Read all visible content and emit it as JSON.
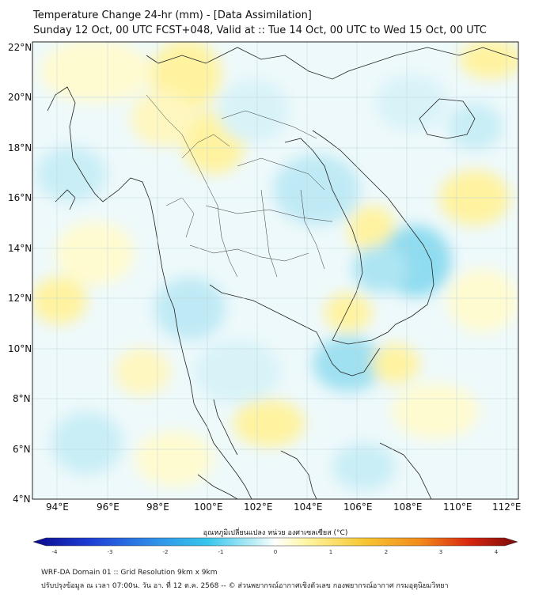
{
  "title": {
    "line1": "Temperature Change 24-hr (mm) - [Data Assimilation]",
    "line2": "Sunday 12 Oct, 00 UTC FCST+048, Valid at :: Tue 14 Oct, 00 UTC to Wed 15 Oct, 00 UTC"
  },
  "map": {
    "lat_labels": [
      "22°N",
      "20°N",
      "18°N",
      "16°N",
      "14°N",
      "12°N",
      "10°N",
      "8°N",
      "6°N",
      "4°N"
    ],
    "lon_labels": [
      "94°E",
      "96°E",
      "98°E",
      "100°E",
      "102°E",
      "104°E",
      "106°E",
      "108°E",
      "110°E",
      "112°E"
    ],
    "lat_range": [
      4,
      22.2
    ],
    "lon_range": [
      93,
      112.5
    ],
    "land_color": "#d9f1f6",
    "ocean_color": "#eef9fb"
  },
  "colorbar": {
    "label": "อุณหภูมิเปลี่ยนแปลง หน่วย องศาเซลเซียส (°C)",
    "ticks": [
      "-4",
      "-3",
      "-2",
      "-1",
      "0",
      "1",
      "2",
      "3",
      "4"
    ],
    "range": [
      -4,
      4
    ],
    "colors": [
      "#0a0a8c",
      "#1f3fd6",
      "#2f8fe8",
      "#36c6ec",
      "#9ee6f3",
      "#ffffff",
      "#fff7a8",
      "#f7c833",
      "#f28a1a",
      "#d8260f",
      "#7a0a0a"
    ]
  },
  "footer": {
    "line1": "WRF-DA Domain 01 :: Grid Resolution 9km x 9km",
    "line2": "ปรับปรุงข้อมูล ณ เวลา 07:00น. วัน อา. ที่ 12 ต.ค. 2568 -- © ส่วนพยากรณ์อากาศเชิงตัวเลข กองพยากรณ์อากาศ กรมอุตุนิยมวิทยา"
  }
}
